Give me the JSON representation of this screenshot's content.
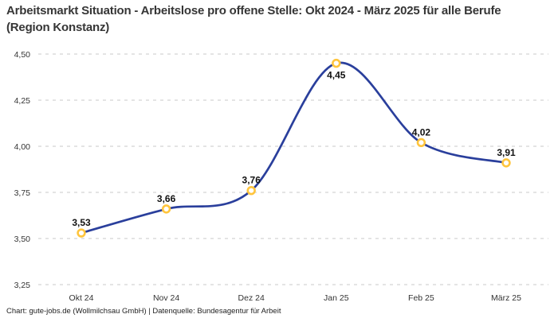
{
  "header": {
    "title": "Arbeitsmarkt Situation - Arbeitslose pro offene Stelle: Okt 2024 - März 2025 für alle Berufe (Region Konstanz)"
  },
  "footer": {
    "credit": "Chart: gute-jobs.de (Wollmilchsau GmbH) | Datenquelle: Bundesagentur für Arbeit"
  },
  "colors": {
    "line": "#2a3f9c",
    "marker_ring": "#ffc53d",
    "marker_fill": "#ffffff",
    "grid": "#c9c9c9",
    "axis_text": "#333333",
    "data_label": "#111111",
    "title_text": "#363636"
  },
  "chart_data": {
    "type": "line",
    "title": "Arbeitsmarkt Situation - Arbeitslose pro offene Stelle: Okt 2024 - März 2025 für alle Berufe (Region Konstanz)",
    "categories": [
      "Okt 24",
      "Nov 24",
      "Dez 24",
      "Jan 25",
      "Feb 25",
      "März 25"
    ],
    "values": [
      3.53,
      3.66,
      3.76,
      4.45,
      4.02,
      3.91
    ],
    "value_labels": [
      "3,53",
      "3,66",
      "3,76",
      "4,45",
      "4,02",
      "3,91"
    ],
    "value_label_positions": [
      "above",
      "above",
      "above",
      "below",
      "above",
      "above"
    ],
    "y_ticks": [
      {
        "value": 4.5,
        "label": "4,50"
      },
      {
        "value": 4.25,
        "label": "4,25"
      },
      {
        "value": 4.0,
        "label": "4,00"
      },
      {
        "value": 3.75,
        "label": "3,75"
      },
      {
        "value": 3.5,
        "label": "3,50"
      },
      {
        "value": 3.25,
        "label": "3,25"
      }
    ],
    "ylim": [
      3.25,
      4.5
    ],
    "xlabel": "",
    "ylabel": "",
    "grid": "horizontal-dashed",
    "legend": "none",
    "curve": "smooth-spline",
    "decimal_separator": ","
  }
}
